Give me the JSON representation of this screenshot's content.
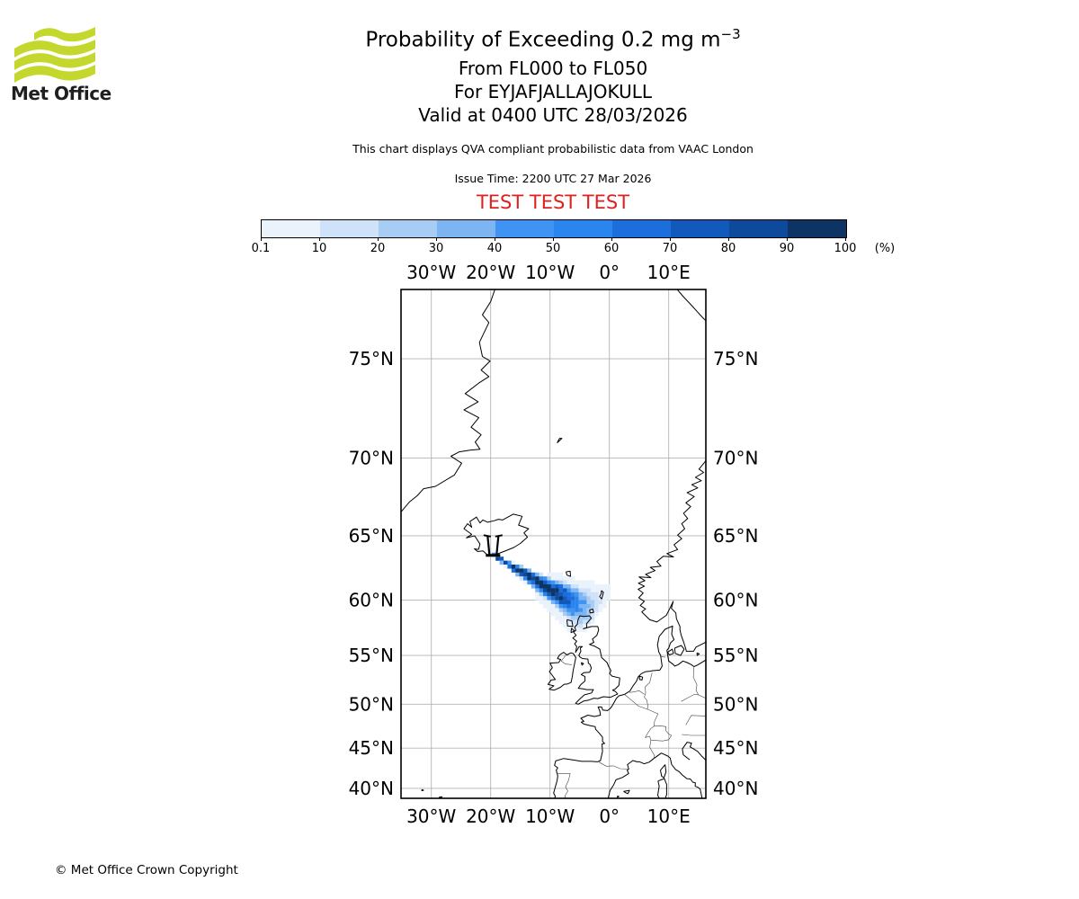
{
  "header": {
    "logo_text": "Met Office",
    "logo_green": "#c3d72d",
    "title_main": "Probability of Exceeding 0.2 mg m",
    "title_sup": "−3",
    "subtitle_flight_levels": "From FL000 to FL050",
    "subtitle_volcano": "For EYJAFJALLAJOKULL",
    "subtitle_valid": "Valid at 0400 UTC 28/03/2026",
    "note": "This chart displays QVA compliant probabilistic data from VAAC London",
    "issue_time": "Issue Time: 2200 UTC 27 Mar 2026",
    "test_banner": "TEST TEST TEST",
    "test_color": "#dd2020"
  },
  "colorbar": {
    "tick_labels": [
      "0.1",
      "10",
      "20",
      "30",
      "40",
      "50",
      "60",
      "70",
      "80",
      "90",
      "100"
    ],
    "unit_label": "(%)",
    "colors": [
      "#eaf2fc",
      "#cfe2f9",
      "#a8cdf4",
      "#7cb5f2",
      "#3f93f2",
      "#2b85ee",
      "#1c6edd",
      "#1159bb",
      "#0d4a9c",
      "#0d3465"
    ]
  },
  "map": {
    "lon_tick_labels": [
      "30°W",
      "20°W",
      "10°W",
      "0°",
      "10°E"
    ],
    "lat_tick_labels": [
      "75°N",
      "70°N",
      "65°N",
      "60°N",
      "55°N",
      "50°N",
      "45°N",
      "40°N"
    ],
    "gridline_color": "#b3b3b3",
    "coast_color": "#000000",
    "border_color": "#444444"
  },
  "chart_data": {
    "type": "map",
    "projection": "mercator",
    "lon_range": [
      -35.1,
      16.3
    ],
    "lat_range": [
      38.7,
      77.7
    ],
    "grid_lons": [
      -30,
      -20,
      -10,
      0,
      10
    ],
    "grid_lats": [
      75,
      70,
      65,
      60,
      55,
      50,
      45,
      40
    ],
    "legend_percent_levels": [
      0.1,
      10,
      20,
      30,
      40,
      50,
      60,
      70,
      80,
      90,
      100
    ],
    "quantity": "Probability of Exceeding 0.2 mg m-3, FL000-FL050",
    "volcano": {
      "name": "EYJAFJALLAJOKULL",
      "lon": -19.6,
      "lat": 63.6
    },
    "plume": {
      "description": "Ash-cloud exceedance-probability plume extending south-east from Eyjafjallajokull (Iceland) towards Orkney/Shetland and northern Scotland",
      "axis": [
        {
          "lon": -19.6,
          "lat": 63.6
        },
        {
          "lon": -11.2,
          "lat": 60.9
        },
        {
          "lon": -3.7,
          "lat": 59.1
        }
      ],
      "max_probability_percent": 100,
      "high_probability_core": "90-100% along the axis from the volcano to about 6W 59.8N"
    }
  },
  "footer": {
    "copyright": "© Met Office Crown Copyright"
  }
}
